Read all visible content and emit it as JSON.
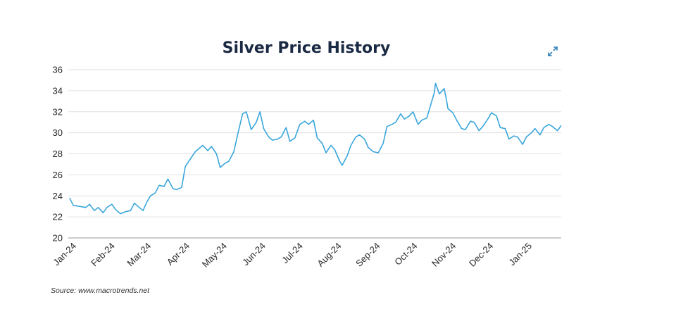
{
  "chart_data": {
    "type": "line",
    "title": "Silver Price History",
    "source": "Source: www.macrotrends.net",
    "xlabel": "",
    "ylabel": "",
    "ylim": [
      20,
      36
    ],
    "yticks": [
      20,
      22,
      24,
      26,
      28,
      30,
      32,
      34,
      36
    ],
    "xticks": [
      "Jan-24",
      "Feb-24",
      "Mar-24",
      "Apr-24",
      "May-24",
      "Jun-24",
      "Jul-24",
      "Aug-24",
      "Sep-24",
      "Oct-24",
      "Nov-24",
      "Dec-24",
      "Jan-25"
    ],
    "grid": true,
    "legend": "none",
    "line_color": "#3aa6dc",
    "x_start": "2024-01-01",
    "x_end": "2025-01-31",
    "series": [
      {
        "values": [
          {
            "x": "2024-01-02",
            "y": 23.8
          },
          {
            "x": "2024-01-05",
            "y": 23.1
          },
          {
            "x": "2024-01-10",
            "y": 23.0
          },
          {
            "x": "2024-01-15",
            "y": 22.9
          },
          {
            "x": "2024-01-18",
            "y": 23.2
          },
          {
            "x": "2024-01-22",
            "y": 22.6
          },
          {
            "x": "2024-01-25",
            "y": 22.9
          },
          {
            "x": "2024-01-29",
            "y": 22.4
          },
          {
            "x": "2024-02-01",
            "y": 22.9
          },
          {
            "x": "2024-02-05",
            "y": 23.2
          },
          {
            "x": "2024-02-08",
            "y": 22.7
          },
          {
            "x": "2024-02-12",
            "y": 22.3
          },
          {
            "x": "2024-02-16",
            "y": 22.5
          },
          {
            "x": "2024-02-20",
            "y": 22.6
          },
          {
            "x": "2024-02-23",
            "y": 23.3
          },
          {
            "x": "2024-02-27",
            "y": 22.9
          },
          {
            "x": "2024-03-01",
            "y": 22.6
          },
          {
            "x": "2024-03-04",
            "y": 23.4
          },
          {
            "x": "2024-03-07",
            "y": 24.0
          },
          {
            "x": "2024-03-11",
            "y": 24.3
          },
          {
            "x": "2024-03-14",
            "y": 25.0
          },
          {
            "x": "2024-03-18",
            "y": 24.9
          },
          {
            "x": "2024-03-21",
            "y": 25.6
          },
          {
            "x": "2024-03-25",
            "y": 24.7
          },
          {
            "x": "2024-03-28",
            "y": 24.6
          },
          {
            "x": "2024-04-01",
            "y": 24.8
          },
          {
            "x": "2024-04-04",
            "y": 26.8
          },
          {
            "x": "2024-04-08",
            "y": 27.5
          },
          {
            "x": "2024-04-12",
            "y": 28.2
          },
          {
            "x": "2024-04-15",
            "y": 28.5
          },
          {
            "x": "2024-04-18",
            "y": 28.8
          },
          {
            "x": "2024-04-22",
            "y": 28.3
          },
          {
            "x": "2024-04-25",
            "y": 28.7
          },
          {
            "x": "2024-04-29",
            "y": 28.0
          },
          {
            "x": "2024-05-02",
            "y": 26.7
          },
          {
            "x": "2024-05-06",
            "y": 27.1
          },
          {
            "x": "2024-05-09",
            "y": 27.3
          },
          {
            "x": "2024-05-13",
            "y": 28.2
          },
          {
            "x": "2024-05-16",
            "y": 29.8
          },
          {
            "x": "2024-05-20",
            "y": 31.8
          },
          {
            "x": "2024-05-23",
            "y": 32.0
          },
          {
            "x": "2024-05-27",
            "y": 30.3
          },
          {
            "x": "2024-05-31",
            "y": 31.0
          },
          {
            "x": "2024-06-03",
            "y": 32.0
          },
          {
            "x": "2024-06-06",
            "y": 30.4
          },
          {
            "x": "2024-06-10",
            "y": 29.6
          },
          {
            "x": "2024-06-13",
            "y": 29.3
          },
          {
            "x": "2024-06-17",
            "y": 29.4
          },
          {
            "x": "2024-06-20",
            "y": 29.6
          },
          {
            "x": "2024-06-24",
            "y": 30.5
          },
          {
            "x": "2024-06-27",
            "y": 29.2
          },
          {
            "x": "2024-07-01",
            "y": 29.5
          },
          {
            "x": "2024-07-05",
            "y": 30.8
          },
          {
            "x": "2024-07-09",
            "y": 31.1
          },
          {
            "x": "2024-07-12",
            "y": 30.8
          },
          {
            "x": "2024-07-16",
            "y": 31.2
          },
          {
            "x": "2024-07-19",
            "y": 29.5
          },
          {
            "x": "2024-07-23",
            "y": 29.0
          },
          {
            "x": "2024-07-26",
            "y": 28.1
          },
          {
            "x": "2024-07-30",
            "y": 28.8
          },
          {
            "x": "2024-08-02",
            "y": 28.4
          },
          {
            "x": "2024-08-06",
            "y": 27.3
          },
          {
            "x": "2024-08-08",
            "y": 26.9
          },
          {
            "x": "2024-08-12",
            "y": 27.8
          },
          {
            "x": "2024-08-15",
            "y": 28.8
          },
          {
            "x": "2024-08-19",
            "y": 29.6
          },
          {
            "x": "2024-08-22",
            "y": 29.8
          },
          {
            "x": "2024-08-26",
            "y": 29.4
          },
          {
            "x": "2024-08-29",
            "y": 28.6
          },
          {
            "x": "2024-09-02",
            "y": 28.2
          },
          {
            "x": "2024-09-06",
            "y": 28.1
          },
          {
            "x": "2024-09-10",
            "y": 29.0
          },
          {
            "x": "2024-09-13",
            "y": 30.6
          },
          {
            "x": "2024-09-17",
            "y": 30.8
          },
          {
            "x": "2024-09-20",
            "y": 31.0
          },
          {
            "x": "2024-09-24",
            "y": 31.8
          },
          {
            "x": "2024-09-27",
            "y": 31.3
          },
          {
            "x": "2024-10-01",
            "y": 31.6
          },
          {
            "x": "2024-10-04",
            "y": 32.0
          },
          {
            "x": "2024-10-08",
            "y": 30.8
          },
          {
            "x": "2024-10-11",
            "y": 31.2
          },
          {
            "x": "2024-10-15",
            "y": 31.4
          },
          {
            "x": "2024-10-18",
            "y": 32.6
          },
          {
            "x": "2024-10-21",
            "y": 33.8
          },
          {
            "x": "2024-10-22",
            "y": 34.7
          },
          {
            "x": "2024-10-25",
            "y": 33.7
          },
          {
            "x": "2024-10-29",
            "y": 34.2
          },
          {
            "x": "2024-10-31",
            "y": 33.0
          },
          {
            "x": "2024-11-01",
            "y": 32.3
          },
          {
            "x": "2024-11-05",
            "y": 31.9
          },
          {
            "x": "2024-11-08",
            "y": 31.2
          },
          {
            "x": "2024-11-12",
            "y": 30.4
          },
          {
            "x": "2024-11-15",
            "y": 30.3
          },
          {
            "x": "2024-11-19",
            "y": 31.1
          },
          {
            "x": "2024-11-22",
            "y": 31.0
          },
          {
            "x": "2024-11-26",
            "y": 30.2
          },
          {
            "x": "2024-11-29",
            "y": 30.6
          },
          {
            "x": "2024-12-03",
            "y": 31.3
          },
          {
            "x": "2024-12-06",
            "y": 31.9
          },
          {
            "x": "2024-12-10",
            "y": 31.6
          },
          {
            "x": "2024-12-13",
            "y": 30.5
          },
          {
            "x": "2024-12-17",
            "y": 30.4
          },
          {
            "x": "2024-12-20",
            "y": 29.4
          },
          {
            "x": "2024-12-24",
            "y": 29.7
          },
          {
            "x": "2024-12-27",
            "y": 29.6
          },
          {
            "x": "2024-12-31",
            "y": 28.9
          },
          {
            "x": "2025-01-03",
            "y": 29.6
          },
          {
            "x": "2025-01-07",
            "y": 30.0
          },
          {
            "x": "2025-01-10",
            "y": 30.4
          },
          {
            "x": "2025-01-14",
            "y": 29.8
          },
          {
            "x": "2025-01-17",
            "y": 30.5
          },
          {
            "x": "2025-01-21",
            "y": 30.8
          },
          {
            "x": "2025-01-24",
            "y": 30.6
          },
          {
            "x": "2025-01-28",
            "y": 30.2
          },
          {
            "x": "2025-01-31",
            "y": 30.7
          }
        ]
      }
    ]
  },
  "ui": {
    "expand_icon": "expand-icon",
    "accent": "#2d7fb8"
  }
}
